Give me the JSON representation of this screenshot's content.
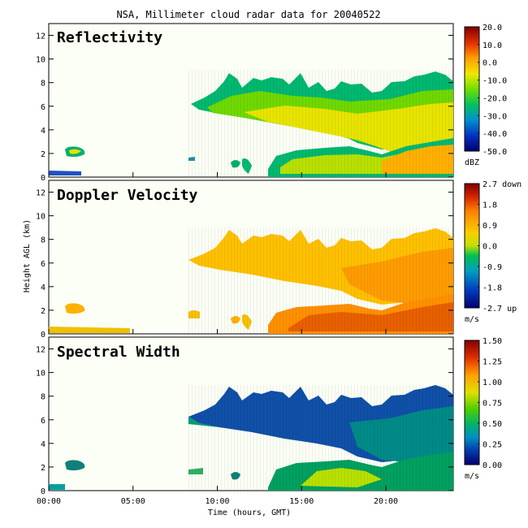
{
  "chart_data": {
    "type": "heatmap",
    "title": "NSA, Millimeter cloud radar data for 20040522",
    "xlabel": "Time (hours, GMT)",
    "ylabel": "Height AGL (km)",
    "xlim": [
      0,
      24
    ],
    "ylim": [
      0,
      13
    ],
    "x_ticks": [
      "00:00",
      "05:00",
      "10:00",
      "15:00",
      "20:00"
    ],
    "y_ticks": [
      "0",
      "2",
      "4",
      "6",
      "8",
      "10",
      "12"
    ],
    "panels": [
      {
        "name": "Reflectivity",
        "unit": "dBZ",
        "colorbar_ticks": [
          "20.0",
          "10.0",
          "0.0",
          "-10.0",
          "-20.0",
          "-30.0",
          "-40.0",
          "-50.0"
        ],
        "colorbar_range": [
          -50,
          20
        ],
        "features": [
          {
            "x": [
              0.0,
              1.0
            ],
            "y": [
              0.0,
              0.6
            ],
            "level": -40
          },
          {
            "x": [
              1.0,
              2.3
            ],
            "y": [
              1.5,
              2.6
            ],
            "level": -25
          },
          {
            "x": [
              8.0,
              24.0
            ],
            "y": [
              3.0,
              8.8
            ],
            "level": -20
          },
          {
            "x": [
              13.3,
              19.0
            ],
            "y": [
              0.0,
              2.5
            ],
            "level": -15
          },
          {
            "x": [
              18.0,
              24.0
            ],
            "y": [
              0.0,
              6.0
            ],
            "level": -5
          }
        ]
      },
      {
        "name": "Doppler Velocity",
        "unit": "m/s",
        "colorbar_ticks": [
          "2.7 down",
          "1.8",
          "0.9",
          "0.0",
          "-0.9",
          "-1.8",
          "-2.7 up"
        ],
        "colorbar_range": [
          -2.7,
          2.7
        ],
        "features": [
          {
            "x": [
              0.0,
              2.5
            ],
            "y": [
              0.0,
              0.4
            ],
            "level": 0.4
          },
          {
            "x": [
              1.0,
              2.3
            ],
            "y": [
              1.5,
              2.6
            ],
            "level": 0.5
          },
          {
            "x": [
              8.0,
              24.0
            ],
            "y": [
              3.0,
              8.8
            ],
            "level": 0.4
          },
          {
            "x": [
              13.3,
              24.0
            ],
            "y": [
              0.0,
              3.0
            ],
            "level": 1.0
          }
        ]
      },
      {
        "name": "Spectral Width",
        "unit": "m/s",
        "colorbar_ticks": [
          "1.50",
          "1.25",
          "1.00",
          "0.75",
          "0.50",
          "0.25",
          "0.00"
        ],
        "colorbar_range": [
          0.0,
          1.5
        ],
        "features": [
          {
            "x": [
              1.0,
              2.3
            ],
            "y": [
              1.5,
              2.6
            ],
            "level": 0.3
          },
          {
            "x": [
              8.0,
              24.0
            ],
            "y": [
              3.0,
              8.8
            ],
            "level": 0.15
          },
          {
            "x": [
              13.3,
              24.0
            ],
            "y": [
              0.0,
              3.0
            ],
            "level": 0.55
          }
        ]
      }
    ],
    "grid": false
  }
}
